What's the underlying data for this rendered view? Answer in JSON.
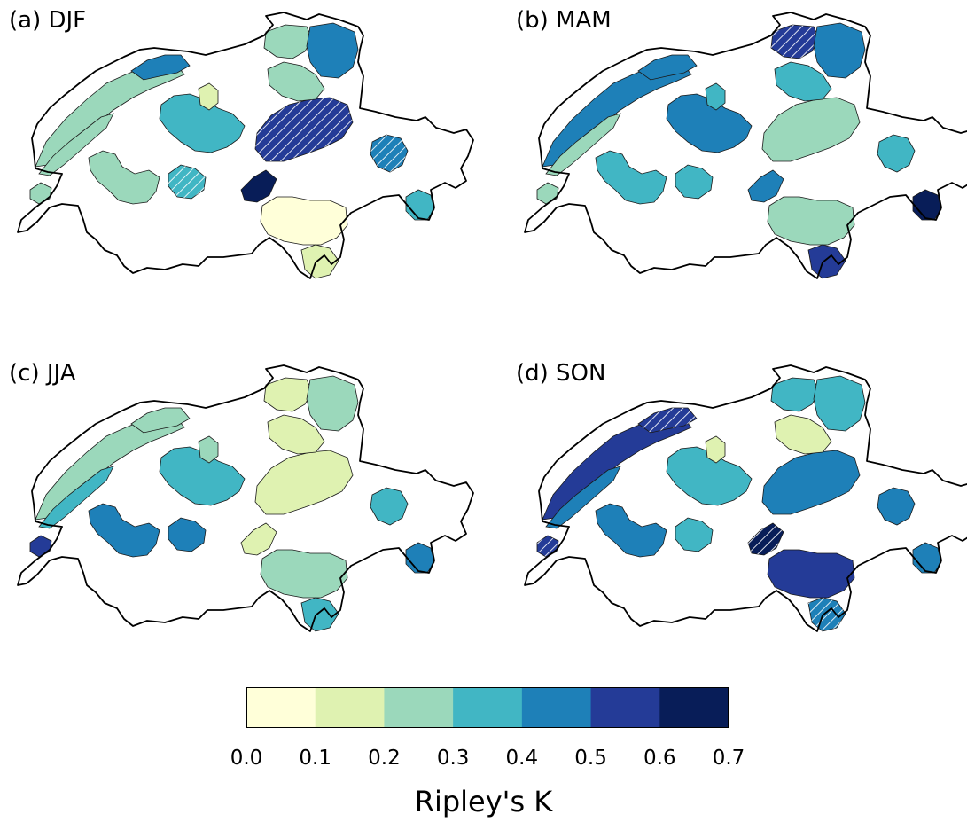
{
  "panels": [
    {
      "label": "(a) DJF",
      "season": "DJF",
      "regions": [
        {
          "id": "jura-n",
          "class": 2
        },
        {
          "id": "jura-s",
          "class": 2
        },
        {
          "id": "jura-ne",
          "class": 4
        },
        {
          "id": "plateau-w",
          "class": 2
        },
        {
          "id": "plateau-c",
          "class": 3
        },
        {
          "id": "plateau-ce",
          "class": 1
        },
        {
          "id": "emme",
          "class": 3,
          "hatched": true
        },
        {
          "id": "north-a",
          "class": 2
        },
        {
          "id": "north-b",
          "class": 4
        },
        {
          "id": "reuss",
          "class": 5,
          "hatched": true
        },
        {
          "id": "uri",
          "class": 6
        },
        {
          "id": "ticino",
          "class": 0
        },
        {
          "id": "rhine-c",
          "class": 2
        },
        {
          "id": "graubuenden",
          "class": 4,
          "hatched": true
        },
        {
          "id": "engadin",
          "class": 3
        },
        {
          "id": "sopra",
          "class": 1
        },
        {
          "id": "valais-w",
          "class": 2
        }
      ]
    },
    {
      "label": "(b) MAM",
      "season": "MAM",
      "regions": [
        {
          "id": "jura-n",
          "class": 4
        },
        {
          "id": "jura-s",
          "class": 2
        },
        {
          "id": "jura-ne",
          "class": 4
        },
        {
          "id": "plateau-w",
          "class": 3
        },
        {
          "id": "plateau-c",
          "class": 4
        },
        {
          "id": "plateau-ce",
          "class": 3
        },
        {
          "id": "emme",
          "class": 3
        },
        {
          "id": "north-a",
          "class": 5,
          "hatched": true
        },
        {
          "id": "north-b",
          "class": 4
        },
        {
          "id": "reuss",
          "class": 2
        },
        {
          "id": "uri",
          "class": 4
        },
        {
          "id": "ticino",
          "class": 2
        },
        {
          "id": "rhine-c",
          "class": 3
        },
        {
          "id": "graubuenden",
          "class": 3
        },
        {
          "id": "engadin",
          "class": 6
        },
        {
          "id": "sopra",
          "class": 5
        },
        {
          "id": "valais-w",
          "class": 2
        }
      ]
    },
    {
      "label": "(c) JJA",
      "season": "JJA",
      "regions": [
        {
          "id": "jura-n",
          "class": 2
        },
        {
          "id": "jura-s",
          "class": 3
        },
        {
          "id": "jura-ne",
          "class": 2
        },
        {
          "id": "plateau-w",
          "class": 4
        },
        {
          "id": "plateau-c",
          "class": 3
        },
        {
          "id": "plateau-ce",
          "class": 2
        },
        {
          "id": "emme",
          "class": 4
        },
        {
          "id": "north-a",
          "class": 1
        },
        {
          "id": "north-b",
          "class": 2
        },
        {
          "id": "reuss",
          "class": 1
        },
        {
          "id": "uri",
          "class": 1
        },
        {
          "id": "ticino",
          "class": 2
        },
        {
          "id": "rhine-c",
          "class": 1
        },
        {
          "id": "graubuenden",
          "class": 3
        },
        {
          "id": "engadin",
          "class": 4
        },
        {
          "id": "sopra",
          "class": 3
        },
        {
          "id": "valais-w",
          "class": 5
        }
      ]
    },
    {
      "label": "(d) SON",
      "season": "SON",
      "regions": [
        {
          "id": "jura-n",
          "class": 5
        },
        {
          "id": "jura-s",
          "class": 4
        },
        {
          "id": "jura-ne",
          "class": 5,
          "hatched": true
        },
        {
          "id": "plateau-w",
          "class": 4
        },
        {
          "id": "plateau-c",
          "class": 3
        },
        {
          "id": "plateau-ce",
          "class": 1
        },
        {
          "id": "emme",
          "class": 3
        },
        {
          "id": "north-a",
          "class": 3
        },
        {
          "id": "north-b",
          "class": 3
        },
        {
          "id": "reuss",
          "class": 4
        },
        {
          "id": "uri",
          "class": 6,
          "hatched": true
        },
        {
          "id": "ticino",
          "class": 5
        },
        {
          "id": "rhine-c",
          "class": 1
        },
        {
          "id": "graubuenden",
          "class": 4
        },
        {
          "id": "engadin",
          "class": 4
        },
        {
          "id": "sopra",
          "class": 4,
          "hatched": true
        },
        {
          "id": "valais-w",
          "class": 5,
          "hatched": true
        }
      ]
    }
  ],
  "colorbar": {
    "title": "Ripley's K",
    "colors": [
      "#ffffd9",
      "#dff2b1",
      "#9bd8bb",
      "#41b6c4",
      "#1e80b8",
      "#243b97",
      "#081d58"
    ],
    "ticks": [
      "0.0",
      "0.1",
      "0.2",
      "0.3",
      "0.4",
      "0.5",
      "0.6",
      "0.7"
    ]
  }
}
